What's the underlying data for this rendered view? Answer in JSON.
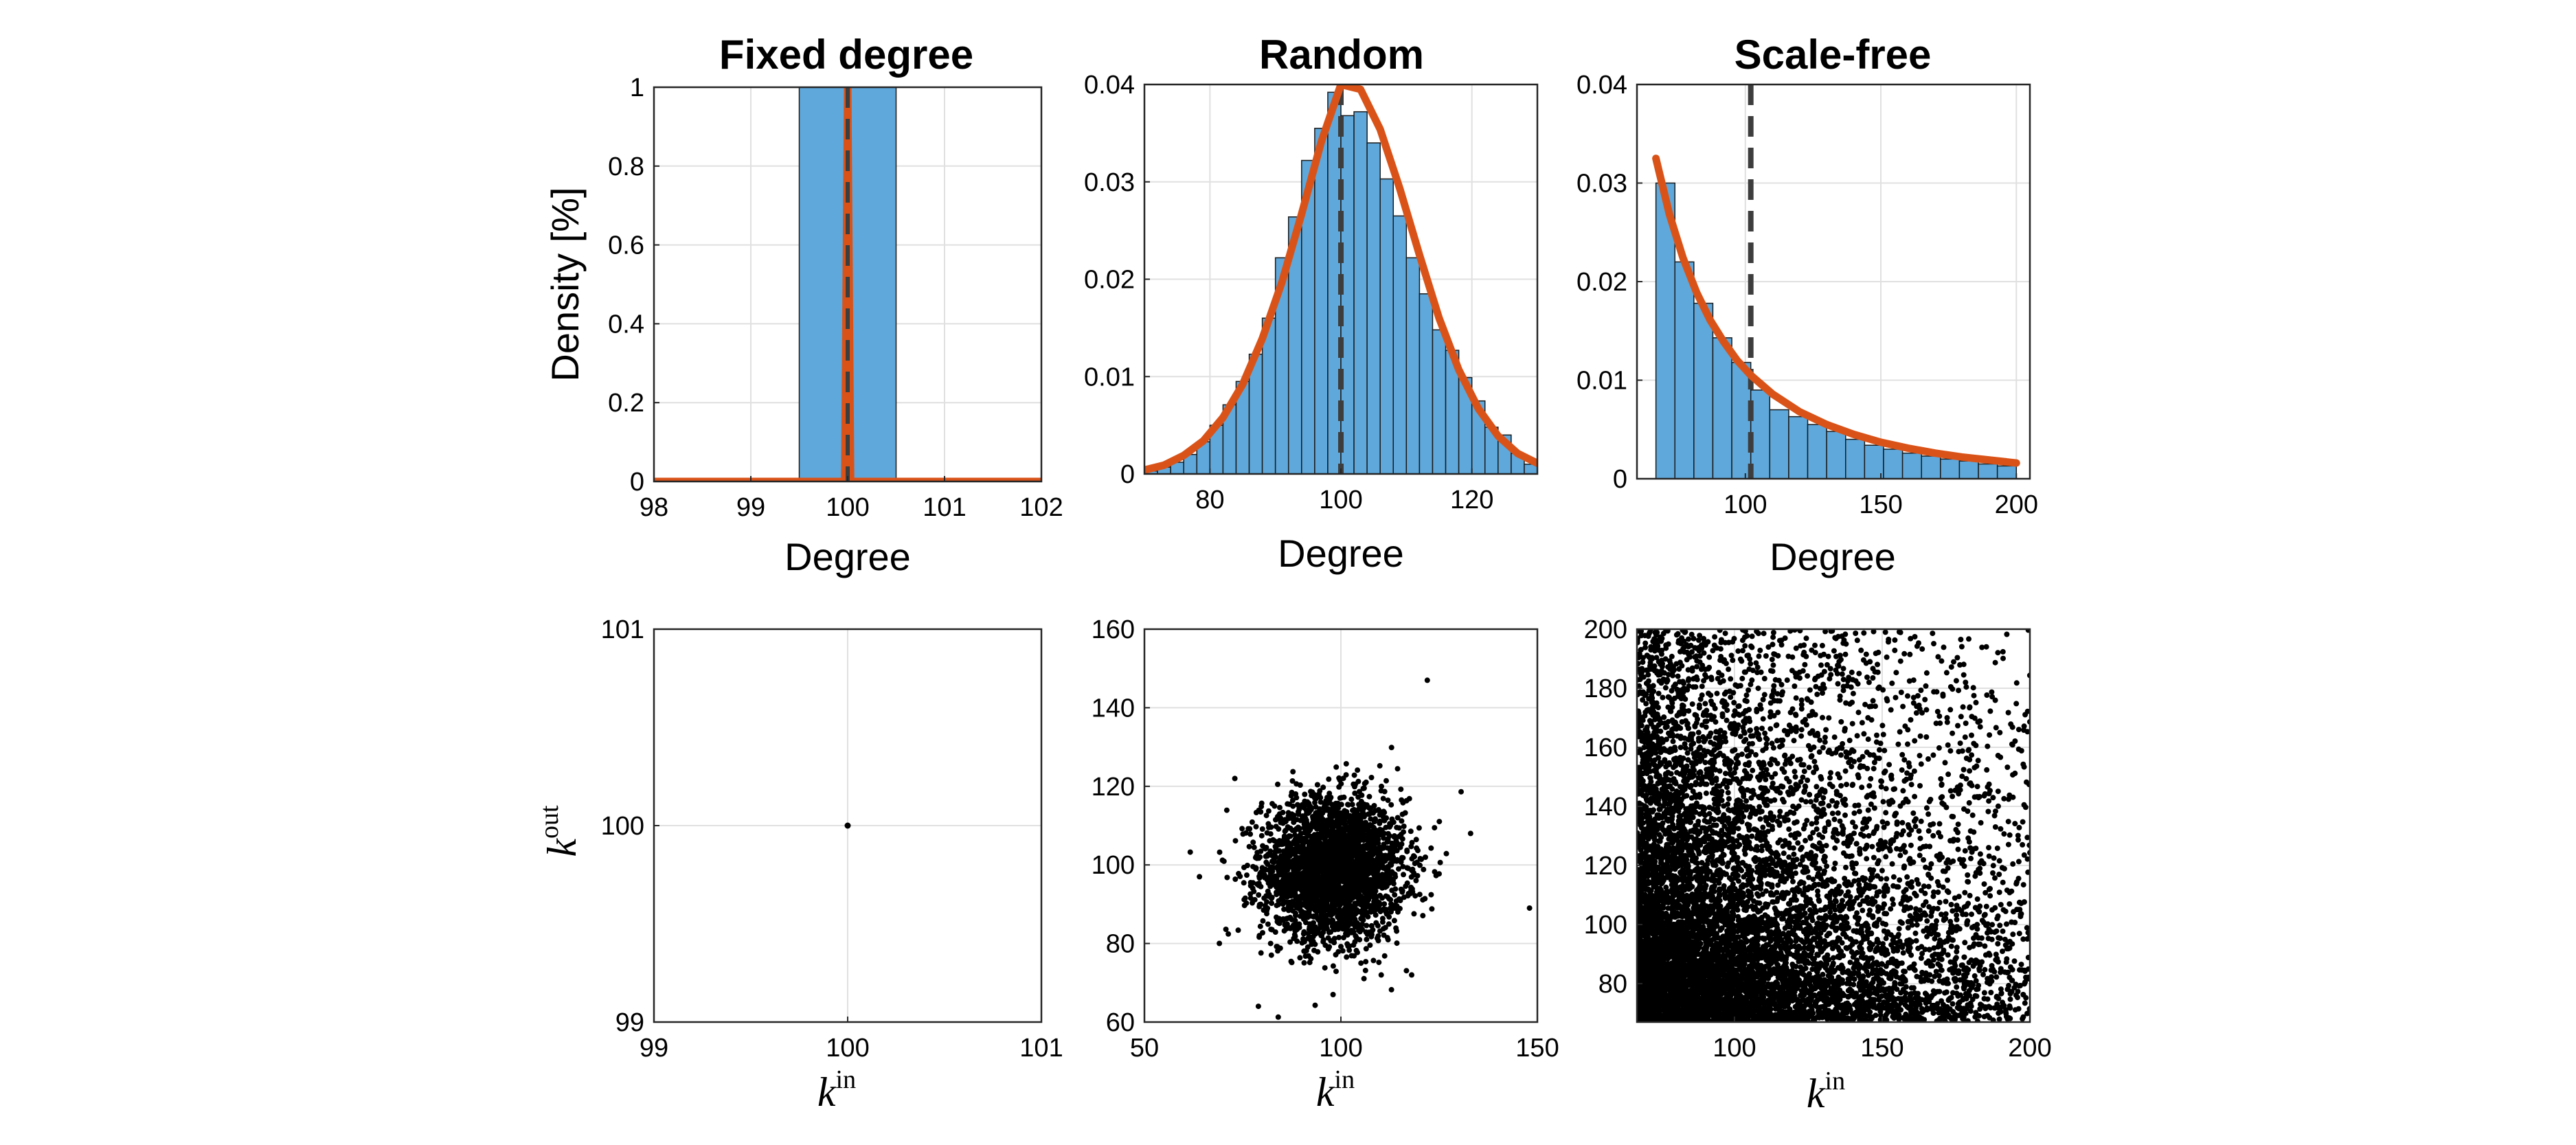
{
  "chart_data": [
    {
      "id": "fixed-hist",
      "type": "bar",
      "title": "Fixed degree",
      "xlabel": "Degree",
      "ylabel": "Density [%]",
      "xlim": [
        98,
        102
      ],
      "ylim": [
        0,
        1
      ],
      "xticks": [
        98,
        99,
        100,
        101,
        102
      ],
      "yticks": [
        0,
        0.2,
        0.4,
        0.6,
        0.8,
        1
      ],
      "grid": true,
      "bins": [
        {
          "x0": 99.5,
          "x1": 100.5,
          "value": 1.0
        }
      ],
      "fit_curve": {
        "x": [
          98,
          99.97,
          100,
          100.03,
          102
        ],
        "y": [
          0,
          0,
          1,
          0,
          0
        ]
      },
      "mean_line": 100
    },
    {
      "id": "random-hist",
      "type": "bar",
      "title": "Random",
      "xlabel": "Degree",
      "ylabel": "",
      "xlim": [
        70,
        130
      ],
      "ylim": [
        0,
        0.04
      ],
      "xticks": [
        80,
        100,
        120
      ],
      "yticks": [
        0,
        0.01,
        0.02,
        0.03,
        0.04
      ],
      "grid": true,
      "bins": [
        {
          "x0": 70,
          "x1": 72,
          "value": 0.0003
        },
        {
          "x0": 72,
          "x1": 74,
          "value": 0.0007
        },
        {
          "x0": 74,
          "x1": 76,
          "value": 0.0012
        },
        {
          "x0": 76,
          "x1": 78,
          "value": 0.002
        },
        {
          "x0": 78,
          "x1": 80,
          "value": 0.0033
        },
        {
          "x0": 80,
          "x1": 82,
          "value": 0.005
        },
        {
          "x0": 82,
          "x1": 84,
          "value": 0.0071
        },
        {
          "x0": 84,
          "x1": 86,
          "value": 0.0095
        },
        {
          "x0": 86,
          "x1": 88,
          "value": 0.0123
        },
        {
          "x0": 88,
          "x1": 90,
          "value": 0.016
        },
        {
          "x0": 90,
          "x1": 92,
          "value": 0.0222
        },
        {
          "x0": 92,
          "x1": 94,
          "value": 0.0264
        },
        {
          "x0": 94,
          "x1": 96,
          "value": 0.0322
        },
        {
          "x0": 96,
          "x1": 98,
          "value": 0.0355
        },
        {
          "x0": 98,
          "x1": 100,
          "value": 0.0392
        },
        {
          "x0": 100,
          "x1": 102,
          "value": 0.0368
        },
        {
          "x0": 102,
          "x1": 104,
          "value": 0.0372
        },
        {
          "x0": 104,
          "x1": 106,
          "value": 0.034
        },
        {
          "x0": 106,
          "x1": 108,
          "value": 0.0303
        },
        {
          "x0": 108,
          "x1": 110,
          "value": 0.0265
        },
        {
          "x0": 110,
          "x1": 112,
          "value": 0.0222
        },
        {
          "x0": 112,
          "x1": 114,
          "value": 0.0185
        },
        {
          "x0": 114,
          "x1": 116,
          "value": 0.0148
        },
        {
          "x0": 116,
          "x1": 118,
          "value": 0.0127
        },
        {
          "x0": 118,
          "x1": 120,
          "value": 0.0099
        },
        {
          "x0": 120,
          "x1": 122,
          "value": 0.0075
        },
        {
          "x0": 122,
          "x1": 124,
          "value": 0.0048
        },
        {
          "x0": 124,
          "x1": 126,
          "value": 0.004
        },
        {
          "x0": 126,
          "x1": 128,
          "value": 0.0021
        },
        {
          "x0": 128,
          "x1": 130,
          "value": 0.001
        }
      ],
      "fit_curve": {
        "x": [
          70,
          73,
          76,
          79,
          82,
          85,
          88,
          91,
          94,
          97,
          100,
          103,
          106,
          109,
          112,
          115,
          118,
          121,
          124,
          127,
          130
        ],
        "y": [
          0.0004,
          0.0009,
          0.0019,
          0.0034,
          0.0058,
          0.0092,
          0.0139,
          0.0197,
          0.0267,
          0.0341,
          0.04,
          0.0395,
          0.0354,
          0.0293,
          0.0225,
          0.016,
          0.0107,
          0.0067,
          0.0039,
          0.0021,
          0.0011
        ]
      },
      "mean_line": 100
    },
    {
      "id": "scalefree-hist",
      "type": "bar",
      "title": "Scale-free",
      "xlabel": "Degree",
      "ylabel": "",
      "xlim": [
        60,
        205
      ],
      "ylim": [
        0,
        0.04
      ],
      "xticks": [
        100,
        150,
        200
      ],
      "yticks": [
        0,
        0.01,
        0.02,
        0.03,
        0.04
      ],
      "grid": true,
      "bins": [
        {
          "x0": 67,
          "x1": 74,
          "value": 0.03
        },
        {
          "x0": 74,
          "x1": 81,
          "value": 0.022
        },
        {
          "x0": 81,
          "x1": 88,
          "value": 0.0178
        },
        {
          "x0": 88,
          "x1": 95,
          "value": 0.0143
        },
        {
          "x0": 95,
          "x1": 102,
          "value": 0.0118
        },
        {
          "x0": 102,
          "x1": 109,
          "value": 0.009
        },
        {
          "x0": 109,
          "x1": 116,
          "value": 0.007
        },
        {
          "x0": 116,
          "x1": 123,
          "value": 0.0063
        },
        {
          "x0": 123,
          "x1": 130,
          "value": 0.0055
        },
        {
          "x0": 130,
          "x1": 137,
          "value": 0.0048
        },
        {
          "x0": 137,
          "x1": 144,
          "value": 0.004
        },
        {
          "x0": 144,
          "x1": 151,
          "value": 0.0034
        },
        {
          "x0": 151,
          "x1": 158,
          "value": 0.003
        },
        {
          "x0": 158,
          "x1": 165,
          "value": 0.0026
        },
        {
          "x0": 165,
          "x1": 172,
          "value": 0.0023
        },
        {
          "x0": 172,
          "x1": 179,
          "value": 0.002
        },
        {
          "x0": 179,
          "x1": 186,
          "value": 0.0018
        },
        {
          "x0": 186,
          "x1": 193,
          "value": 0.0015
        },
        {
          "x0": 193,
          "x1": 200,
          "value": 0.0013
        }
      ],
      "fit_curve": {
        "x": [
          67,
          72,
          77,
          82,
          87,
          92,
          97,
          102,
          110,
          120,
          130,
          140,
          150,
          160,
          170,
          180,
          190,
          200
        ],
        "y": [
          0.0325,
          0.0268,
          0.0224,
          0.0189,
          0.0161,
          0.0139,
          0.012,
          0.0105,
          0.0086,
          0.0068,
          0.0055,
          0.0045,
          0.0037,
          0.0031,
          0.0026,
          0.0022,
          0.0019,
          0.0016
        ]
      },
      "mean_line": 102
    },
    {
      "id": "fixed-scatter",
      "type": "scatter",
      "title": "",
      "xlabel": "k^in",
      "ylabel": "k^out",
      "xlim": [
        99,
        101
      ],
      "ylim": [
        99,
        101
      ],
      "xticks": [
        99,
        100,
        101
      ],
      "yticks": [
        99,
        100,
        101
      ],
      "grid": true,
      "points": [
        [
          100,
          100
        ]
      ]
    },
    {
      "id": "random-scatter",
      "type": "scatter",
      "title": "",
      "xlabel": "k^in",
      "ylabel": "",
      "xlim": [
        50,
        150
      ],
      "ylim": [
        60,
        160
      ],
      "xticks": [
        50,
        100,
        150
      ],
      "yticks": [
        60,
        80,
        100,
        120,
        140,
        160
      ],
      "grid": true,
      "cloud": {
        "center_x": 98,
        "center_y": 99,
        "sd_x": 9,
        "sd_y": 9,
        "n": 3000
      },
      "outliers": [
        [
          122,
          147
        ],
        [
          79,
          64
        ],
        [
          98,
          67
        ],
        [
          64,
          97
        ],
        [
          148,
          89
        ],
        [
          118,
          72
        ],
        [
          133,
          108
        ],
        [
          73,
          122
        ]
      ]
    },
    {
      "id": "scalefree-scatter",
      "type": "scatter",
      "title": "",
      "xlabel": "k^in",
      "ylabel": "",
      "xlim": [
        67,
        200
      ],
      "ylim": [
        67,
        200
      ],
      "xticks": [
        100,
        150,
        200
      ],
      "yticks": [
        80,
        100,
        120,
        140,
        160,
        180,
        200
      ],
      "grid": true,
      "cloud": {
        "distribution": "power-law",
        "min": 67,
        "max": 200,
        "n": 9000
      }
    }
  ],
  "ksym": "k",
  "sup_in": "in",
  "sup_out": "out"
}
